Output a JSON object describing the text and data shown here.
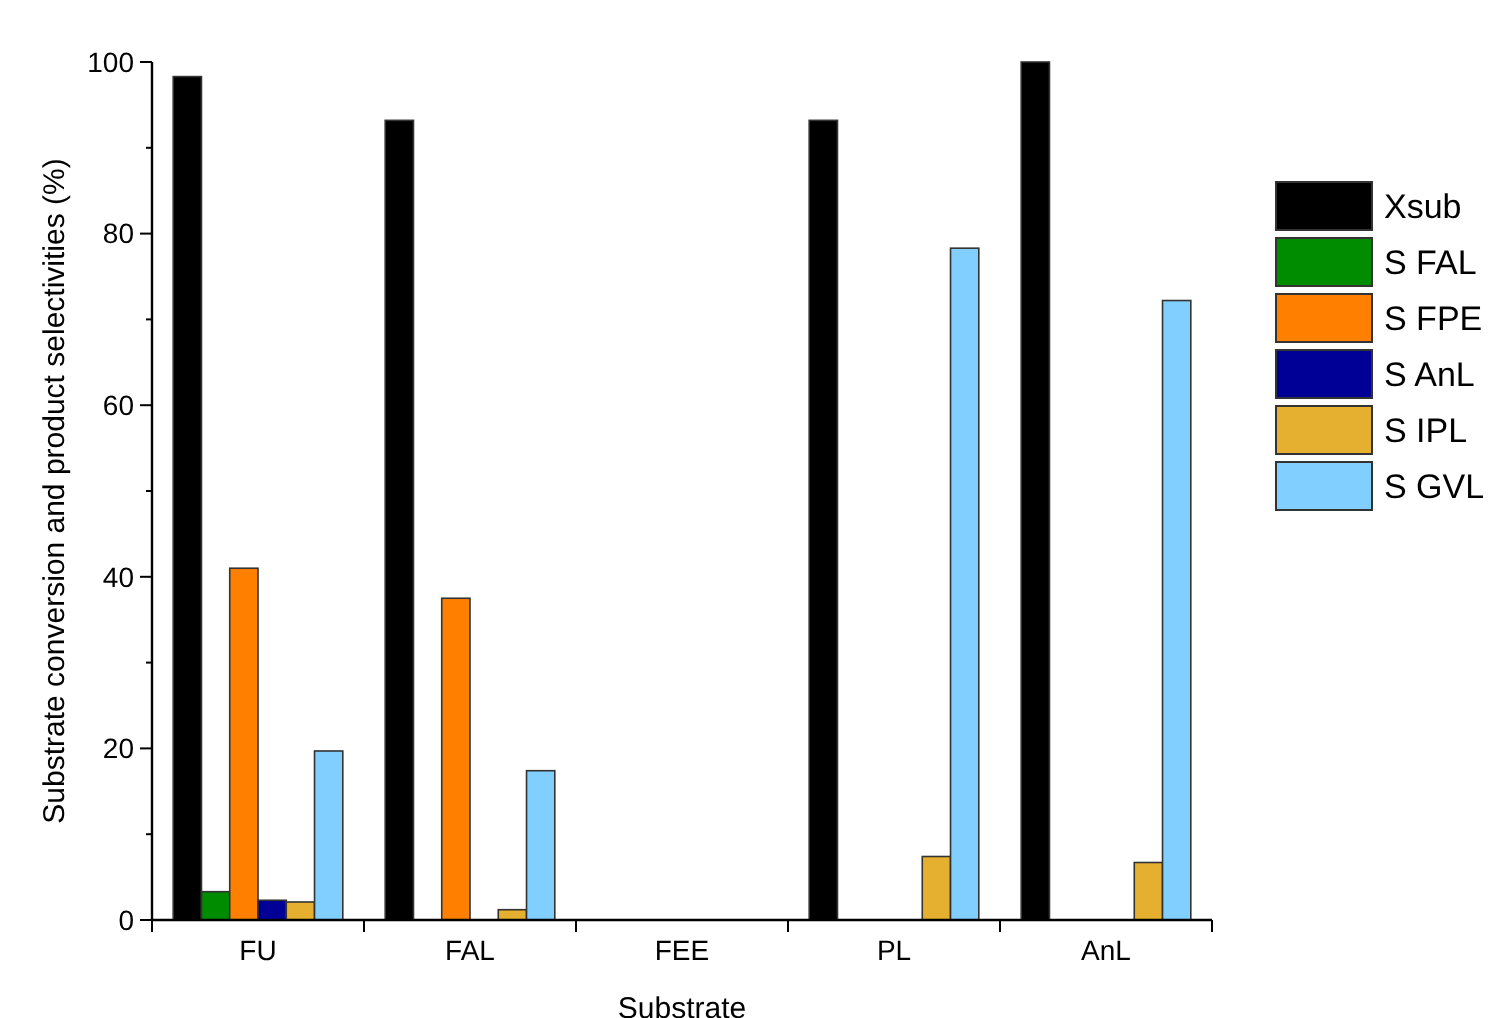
{
  "chart_data": {
    "type": "bar",
    "xlabel": "Substrate",
    "ylabel": "Substrate conversion and product selectivities (%)",
    "categories": [
      "FU",
      "FAL",
      "FEE",
      "PL",
      "AnL"
    ],
    "series": [
      {
        "name": "Xsub",
        "color": "#000000",
        "values": [
          98.3,
          93.2,
          0,
          93.2,
          100
        ]
      },
      {
        "name": "S FAL",
        "color": "#008c00",
        "values": [
          3.3,
          0,
          0,
          0,
          0
        ]
      },
      {
        "name": "S FPE",
        "color": "#ff8000",
        "values": [
          41,
          37.5,
          0,
          0,
          0
        ]
      },
      {
        "name": "S AnL",
        "color": "#000096",
        "values": [
          2.3,
          0,
          0,
          0,
          0
        ]
      },
      {
        "name": "S IPL",
        "color": "#e5b030",
        "values": [
          2.1,
          1.2,
          0,
          7.4,
          6.7
        ]
      },
      {
        "name": "S GVL",
        "color": "#80cfff",
        "values": [
          19.7,
          17.4,
          0,
          78.3,
          72.2
        ]
      }
    ],
    "ylim": [
      0,
      100
    ],
    "yticks": [
      0,
      {
        "value": 10,
        "label": null
      },
      20,
      {
        "value": 30,
        "label": null
      },
      40,
      {
        "value": 50,
        "label": null
      },
      60,
      {
        "value": 70,
        "label": null
      },
      80,
      {
        "value": 90,
        "label": null
      },
      100
    ],
    "grid": false,
    "legend": "right"
  }
}
